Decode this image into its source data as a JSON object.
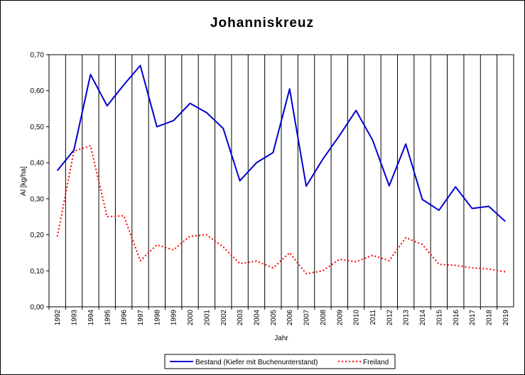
{
  "chart_data": {
    "type": "line",
    "title": "Johanniskreuz",
    "xlabel": "Jahr",
    "ylabel": "Al [kg/ha]",
    "x": [
      "1992",
      "1993",
      "1994",
      "1995",
      "1996",
      "1997",
      "1998",
      "1999",
      "2000",
      "2001",
      "2002",
      "2003",
      "2004",
      "2005",
      "2006",
      "2007",
      "2008",
      "2009",
      "2010",
      "2011",
      "2012",
      "2013",
      "2014",
      "2015",
      "2016",
      "2017",
      "2018",
      "2019"
    ],
    "yticks": [
      "0,00",
      "0,10",
      "0,20",
      "0,30",
      "0,40",
      "0,50",
      "0,60",
      "0,70"
    ],
    "ylim": [
      0,
      0.7
    ],
    "grid": "vertical",
    "legend_position": "bottom",
    "series": [
      {
        "name": "Bestand (Kiefer mit Buchenunterstand)",
        "color": "#0000CC",
        "style": "solid",
        "values": [
          0.378,
          0.435,
          0.645,
          0.558,
          0.616,
          0.67,
          0.5,
          0.517,
          0.565,
          0.539,
          0.495,
          0.35,
          0.4,
          0.428,
          0.605,
          0.335,
          0.41,
          0.475,
          0.545,
          0.463,
          0.336,
          0.452,
          0.298,
          0.268,
          0.333,
          0.273,
          0.279,
          0.237
        ]
      },
      {
        "name": "Freiland",
        "color": "#FF0000",
        "style": "dotted",
        "values": [
          0.195,
          0.432,
          0.447,
          0.25,
          0.253,
          0.128,
          0.172,
          0.158,
          0.196,
          0.2,
          0.166,
          0.12,
          0.127,
          0.108,
          0.15,
          0.092,
          0.1,
          0.132,
          0.125,
          0.143,
          0.128,
          0.192,
          0.173,
          0.118,
          0.115,
          0.108,
          0.105,
          0.097
        ]
      }
    ]
  }
}
